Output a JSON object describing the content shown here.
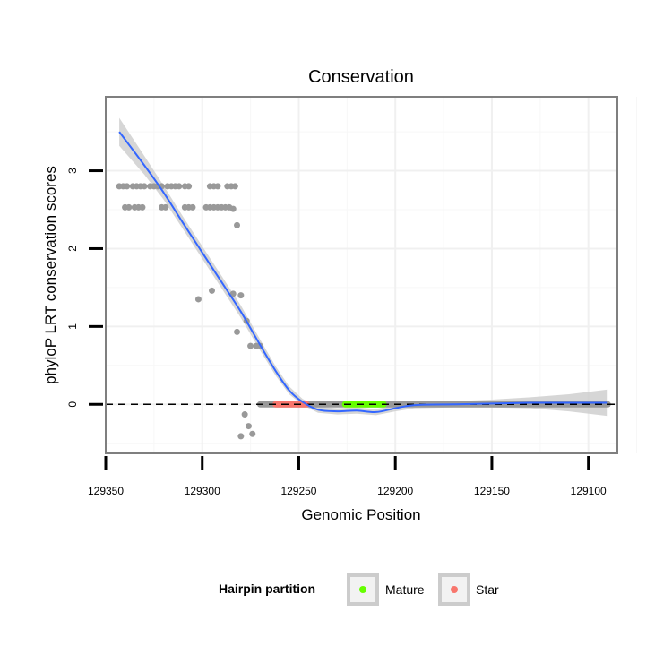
{
  "chart_data": {
    "type": "scatter",
    "title": "Conservation",
    "xlabel": "Genomic Position",
    "ylabel": "phyloP LRT conservation scores",
    "x_reversed": true,
    "xlim": [
      129350,
      129085
    ],
    "ylim": [
      -0.63,
      3.95
    ],
    "x_ticks": [
      {
        "value": 129350,
        "label": "129350"
      },
      {
        "value": 129300,
        "label": "129300"
      },
      {
        "value": 129250,
        "label": "129250"
      },
      {
        "value": 129200,
        "label": "129200"
      },
      {
        "value": 129150,
        "label": "129150"
      },
      {
        "value": 129100,
        "label": "129100"
      }
    ],
    "y_ticks": [
      {
        "value": 0,
        "label": "0"
      },
      {
        "value": 1,
        "label": "1"
      },
      {
        "value": 2,
        "label": "2"
      },
      {
        "value": 3,
        "label": "3"
      }
    ],
    "grid": true,
    "reference_line": {
      "y": 0,
      "style": "dashed",
      "color": "#000000"
    },
    "points_color": "#999999",
    "points": {
      "upper_band_y": 2.8,
      "upper_band_x": [
        129343,
        129341,
        129339,
        129336,
        129334,
        129332,
        129330,
        129327,
        129325,
        129323,
        129321,
        129318,
        129316,
        129314,
        129312,
        129309,
        129307,
        129296,
        129294,
        129292,
        129287,
        129285,
        129283
      ],
      "lower_band_y": 2.53,
      "lower_band_x": [
        129340,
        129338,
        129335,
        129333,
        129331,
        129321,
        129319,
        129309,
        129307,
        129305,
        129298,
        129296,
        129294,
        129292,
        129290,
        129288,
        129286
      ],
      "scattered": [
        {
          "x": 129284,
          "y": 2.51
        },
        {
          "x": 129282,
          "y": 2.3
        },
        {
          "x": 129295,
          "y": 1.46
        },
        {
          "x": 129302,
          "y": 1.35
        },
        {
          "x": 129284,
          "y": 1.42
        },
        {
          "x": 129280,
          "y": 1.4
        },
        {
          "x": 129277,
          "y": 1.07
        },
        {
          "x": 129282,
          "y": 0.93
        },
        {
          "x": 129275,
          "y": 0.75
        },
        {
          "x": 129272,
          "y": 0.75
        },
        {
          "x": 129270,
          "y": 0.75
        },
        {
          "x": 129278,
          "y": -0.13
        },
        {
          "x": 129276,
          "y": -0.28
        },
        {
          "x": 129274,
          "y": -0.38
        },
        {
          "x": 129280,
          "y": -0.41
        }
      ],
      "zero_line_from_x": 129270,
      "zero_line_to_x": 129090,
      "zero_line_y": 0
    },
    "smooth": {
      "color": "#3366ff",
      "band_color": "#cccccc",
      "x": [
        129343,
        129330,
        129320,
        129310,
        129300,
        129290,
        129280,
        129270,
        129262,
        129255,
        129248,
        129240,
        129230,
        129220,
        129210,
        129200,
        129190,
        129170,
        129150,
        129130,
        129110,
        129090
      ],
      "y": [
        3.5,
        3.07,
        2.72,
        2.33,
        1.95,
        1.57,
        1.19,
        0.76,
        0.43,
        0.18,
        0.03,
        -0.07,
        -0.09,
        -0.08,
        -0.1,
        -0.05,
        -0.01,
        0.0,
        0.01,
        0.02,
        0.02,
        0.02
      ],
      "band_half_width": [
        0.18,
        0.12,
        0.09,
        0.08,
        0.08,
        0.08,
        0.08,
        0.07,
        0.06,
        0.05,
        0.04,
        0.04,
        0.04,
        0.04,
        0.04,
        0.04,
        0.04,
        0.04,
        0.05,
        0.07,
        0.11,
        0.17
      ]
    },
    "segments": [
      {
        "name": "Mature",
        "color": "#66ff00",
        "x_from": 129226,
        "x_to": 129206,
        "y": 0
      },
      {
        "name": "Star",
        "color": "#f8766d",
        "x_from": 129262,
        "x_to": 129246,
        "y": 0
      }
    ]
  },
  "legend": {
    "title": "Hairpin partition",
    "items": [
      {
        "label": "Mature",
        "color": "#66ff00"
      },
      {
        "label": "Star",
        "color": "#f8766d"
      }
    ]
  }
}
